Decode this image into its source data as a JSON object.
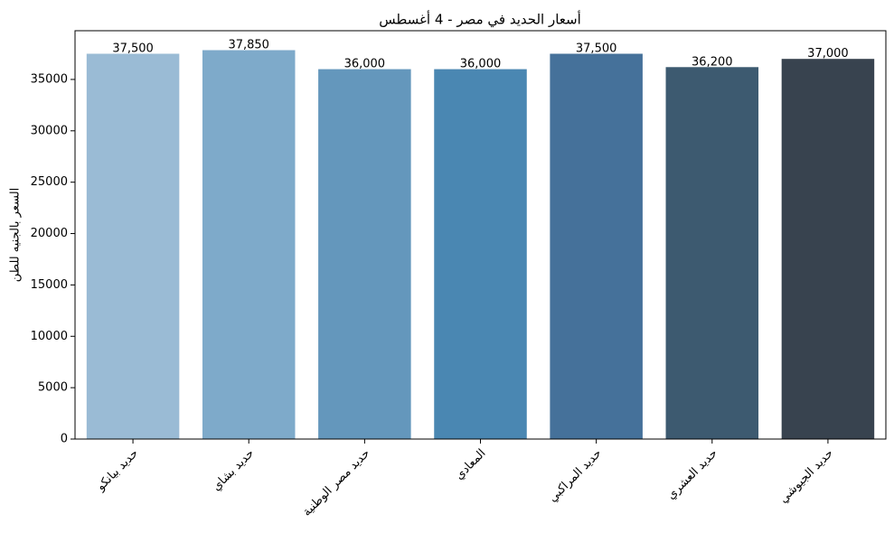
{
  "chart_data": {
    "type": "bar",
    "title": "أسعار الحديد في مصر - 4 أغسطس",
    "y_label": "السعر بالجنيه للطن",
    "categories": [
      "حديد بيانكو",
      "حديد بشاي",
      "حديد مصر الوطنية",
      "المعادي",
      "حديد المراكبي",
      "حديد العشري",
      "حديد الجيوشي"
    ],
    "values": [
      37500,
      37850,
      36000,
      36000,
      37500,
      36200,
      37000
    ],
    "value_labels": [
      "37,500",
      "37,850",
      "36,000",
      "36,000",
      "37,500",
      "36,200",
      "37,000"
    ],
    "colors": [
      "#9abbd5",
      "#7eaaca",
      "#6497bc",
      "#4a87b2",
      "#45719a",
      "#3d5a70",
      "#38434f"
    ],
    "ylim": [
      0,
      39742.5
    ],
    "yticks": [
      0,
      5000,
      10000,
      15000,
      20000,
      25000,
      30000,
      35000
    ]
  }
}
